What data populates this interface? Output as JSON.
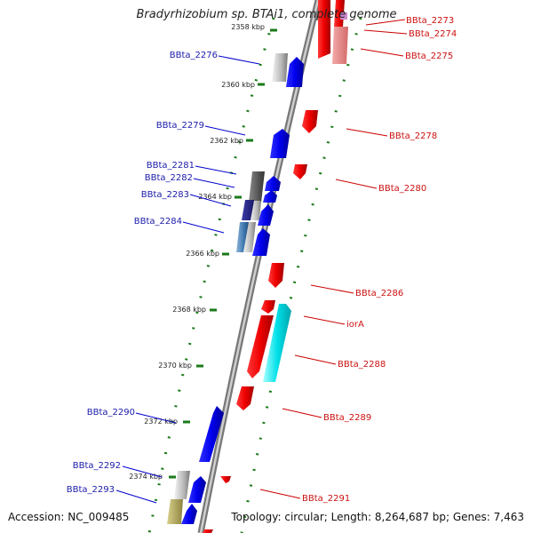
{
  "title": "Bradyrhizobium sp. BTAi1, complete genome",
  "accession_text": "Accession: NC_009485",
  "topology_text": "Topology: circular; Length: 8,264,687 bp; Genes: 7,463",
  "colors": {
    "plus_strand": "#0000ee",
    "minus_strand": "#ee0000",
    "plus_label": "#1b1baa",
    "minus_label": "#cc1111",
    "ticks": "#1a7a1a",
    "backbone": "#888888"
  },
  "kbp_labels": [
    "2358 kbp",
    "2360 kbp",
    "2362 kbp",
    "2364 kbp",
    "2366 kbp",
    "2368 kbp",
    "2370 kbp",
    "2372 kbp",
    "2374 kbp"
  ],
  "plus_genes": [
    "BBta_2276",
    "BBta_2279",
    "BBta_2281",
    "BBta_2282",
    "BBta_2283",
    "BBta_2284",
    "BBta_2290",
    "BBta_2292",
    "BBta_2293"
  ],
  "minus_genes": [
    "BBta_2273",
    "BBta_2274",
    "BBta_2275",
    "BBta_2278",
    "BBta_2280",
    "BBta_2286",
    "iorA",
    "BBta_2288",
    "BBta_2289",
    "BBta_2291"
  ]
}
